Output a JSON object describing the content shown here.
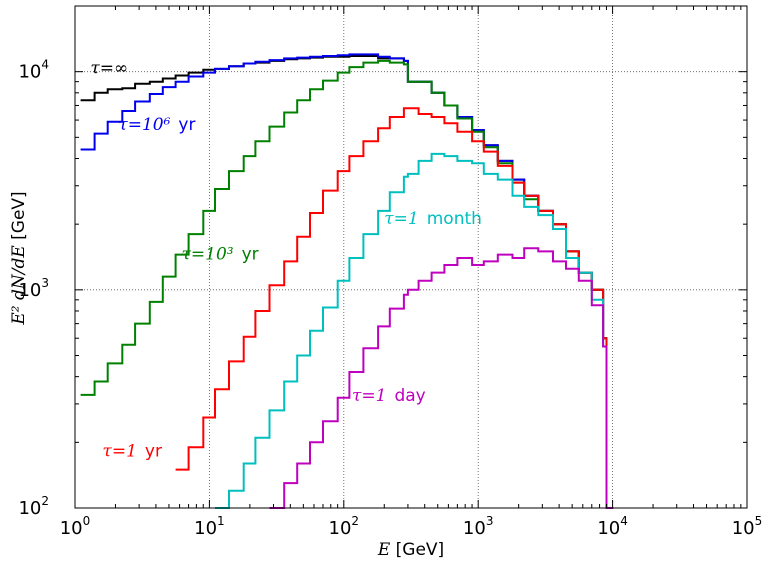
{
  "chart_data": {
    "type": "line",
    "title": "",
    "xlabel_var": "E",
    "xlabel_unit": "[GeV]",
    "ylabel_var": "E² dN/dE",
    "ylabel_unit": "[GeV]",
    "xscale": "log",
    "yscale": "log",
    "xlim": [
      1,
      100000
    ],
    "ylim": [
      100,
      20000
    ],
    "grid": true,
    "x_ticks": [
      {
        "value": 1,
        "base": "10",
        "exp": "0"
      },
      {
        "value": 10,
        "base": "10",
        "exp": "1"
      },
      {
        "value": 100,
        "base": "10",
        "exp": "2"
      },
      {
        "value": 1000,
        "base": "10",
        "exp": "3"
      },
      {
        "value": 10000,
        "base": "10",
        "exp": "4"
      },
      {
        "value": 100000,
        "base": "10",
        "exp": "5"
      }
    ],
    "y_ticks": [
      {
        "value": 100,
        "base": "10",
        "exp": "2"
      },
      {
        "value": 1000,
        "base": "10",
        "exp": "3"
      },
      {
        "value": 10000,
        "base": "10",
        "exp": "4"
      }
    ],
    "series": [
      {
        "name": "tau-infinity",
        "label_prefix": "τ=",
        "label_value": "∞",
        "label_unit": "",
        "color": "#000000",
        "label_anchor": [
          1.3,
          9800
        ],
        "points": [
          [
            1.1,
            7400
          ],
          [
            1.4,
            8000
          ],
          [
            1.75,
            8300
          ],
          [
            2.25,
            8400
          ],
          [
            2.8,
            8800
          ],
          [
            3.6,
            9000
          ],
          [
            4.5,
            9300
          ],
          [
            5.6,
            9600
          ],
          [
            7.0,
            9900
          ],
          [
            9.0,
            10200
          ],
          [
            11.0,
            10300
          ],
          [
            14.0,
            10600
          ],
          [
            18.0,
            10900
          ],
          [
            22.0,
            11000
          ],
          [
            28.0,
            11200
          ],
          [
            36.0,
            11400
          ],
          [
            45.0,
            11500
          ],
          [
            56.0,
            11600
          ],
          [
            70.0,
            11700
          ],
          [
            90.0,
            11700
          ],
          [
            110,
            11800
          ],
          [
            140,
            11800
          ],
          [
            180,
            11500
          ],
          [
            220,
            11500
          ],
          [
            280,
            11200
          ],
          [
            300,
            9000
          ],
          [
            360,
            9000
          ],
          [
            450,
            8000
          ],
          [
            560,
            7000
          ],
          [
            700,
            6200
          ],
          [
            900,
            5400
          ],
          [
            1100,
            4600
          ],
          [
            1400,
            3900
          ],
          [
            1800,
            3200
          ],
          [
            2200,
            2700
          ],
          [
            2800,
            2300
          ],
          [
            3600,
            2000
          ],
          [
            4500,
            1500
          ],
          [
            5600,
            1200
          ],
          [
            7000,
            1000
          ],
          [
            8500,
            600
          ],
          [
            9000,
            100
          ]
        ]
      },
      {
        "name": "tau-1e6-yr",
        "label_prefix": "τ=",
        "label_value": "10⁶",
        "label_unit": "yr",
        "color": "#0000ee",
        "label_anchor": [
          2.1,
          5400
        ],
        "points": [
          [
            1.1,
            4400
          ],
          [
            1.4,
            5200
          ],
          [
            1.75,
            5900
          ],
          [
            2.25,
            6600
          ],
          [
            2.8,
            7300
          ],
          [
            3.6,
            7900
          ],
          [
            4.5,
            8500
          ],
          [
            5.6,
            9000
          ],
          [
            7.0,
            9500
          ],
          [
            9.0,
            9900
          ],
          [
            11.0,
            10300
          ],
          [
            14.0,
            10600
          ],
          [
            18.0,
            10900
          ],
          [
            22.0,
            11100
          ],
          [
            28.0,
            11300
          ],
          [
            36.0,
            11500
          ],
          [
            45.0,
            11600
          ],
          [
            56.0,
            11700
          ],
          [
            70.0,
            11800
          ],
          [
            90.0,
            11900
          ],
          [
            110,
            12000
          ],
          [
            140,
            12000
          ],
          [
            180,
            11700
          ],
          [
            220,
            11500
          ],
          [
            280,
            11200
          ],
          [
            300,
            9000
          ],
          [
            360,
            9000
          ],
          [
            450,
            8000
          ],
          [
            560,
            7000
          ],
          [
            700,
            6200
          ],
          [
            900,
            5400
          ],
          [
            1100,
            4600
          ],
          [
            1400,
            3900
          ],
          [
            1800,
            3200
          ],
          [
            2200,
            2700
          ],
          [
            2800,
            2300
          ],
          [
            3600,
            2000
          ],
          [
            4500,
            1500
          ],
          [
            5600,
            1200
          ],
          [
            7000,
            1000
          ],
          [
            8500,
            600
          ],
          [
            9000,
            100
          ]
        ]
      },
      {
        "name": "tau-1e3-yr",
        "label_prefix": "τ=",
        "label_value": "10³",
        "label_unit": "yr",
        "color": "#008000",
        "label_anchor": [
          6.2,
          1380
        ],
        "points": [
          [
            1.1,
            330
          ],
          [
            1.4,
            380
          ],
          [
            1.75,
            460
          ],
          [
            2.25,
            560
          ],
          [
            2.8,
            700
          ],
          [
            3.6,
            880
          ],
          [
            4.5,
            1150
          ],
          [
            5.6,
            1450
          ],
          [
            7.0,
            1800
          ],
          [
            9.0,
            2300
          ],
          [
            11.0,
            2900
          ],
          [
            14.0,
            3500
          ],
          [
            18.0,
            4100
          ],
          [
            22.0,
            4800
          ],
          [
            28.0,
            5600
          ],
          [
            36.0,
            6500
          ],
          [
            45.0,
            7400
          ],
          [
            56.0,
            8300
          ],
          [
            70.0,
            9100
          ],
          [
            90.0,
            9900
          ],
          [
            110,
            10500
          ],
          [
            140,
            11000
          ],
          [
            180,
            11200
          ],
          [
            220,
            11000
          ],
          [
            280,
            10800
          ],
          [
            300,
            9000
          ],
          [
            360,
            9000
          ],
          [
            450,
            8000
          ],
          [
            560,
            7000
          ],
          [
            700,
            6100
          ],
          [
            900,
            5300
          ],
          [
            1100,
            4500
          ],
          [
            1400,
            3800
          ],
          [
            1800,
            3100
          ],
          [
            2200,
            2600
          ],
          [
            2800,
            2300
          ],
          [
            3600,
            2000
          ],
          [
            4500,
            1500
          ],
          [
            5600,
            1200
          ],
          [
            7000,
            1000
          ],
          [
            8500,
            600
          ],
          [
            9000,
            100
          ]
        ]
      },
      {
        "name": "tau-1-yr",
        "label_prefix": "τ=",
        "label_value": "1",
        "label_unit": "yr",
        "color": "#ff0000",
        "label_anchor": [
          1.6,
          172
        ],
        "points": [
          [
            5.6,
            150
          ],
          [
            7.0,
            190
          ],
          [
            9.0,
            260
          ],
          [
            11.0,
            350
          ],
          [
            14.0,
            470
          ],
          [
            18.0,
            610
          ],
          [
            22.0,
            800
          ],
          [
            28.0,
            1050
          ],
          [
            36.0,
            1350
          ],
          [
            45.0,
            1750
          ],
          [
            56.0,
            2250
          ],
          [
            70.0,
            2850
          ],
          [
            90.0,
            3500
          ],
          [
            110,
            4100
          ],
          [
            140,
            4800
          ],
          [
            180,
            5500
          ],
          [
            220,
            6200
          ],
          [
            280,
            6800
          ],
          [
            300,
            6800
          ],
          [
            360,
            6400
          ],
          [
            450,
            6200
          ],
          [
            560,
            5800
          ],
          [
            700,
            5300
          ],
          [
            900,
            4800
          ],
          [
            1100,
            4300
          ],
          [
            1400,
            3700
          ],
          [
            1800,
            3100
          ],
          [
            2200,
            2700
          ],
          [
            2800,
            2300
          ],
          [
            3600,
            2000
          ],
          [
            4500,
            1500
          ],
          [
            5600,
            1200
          ],
          [
            7000,
            1000
          ],
          [
            8500,
            600
          ],
          [
            9000,
            100
          ]
        ]
      },
      {
        "name": "tau-1-month",
        "label_prefix": "τ=",
        "label_value": "1",
        "label_unit": "month",
        "color": "#00bfbf",
        "label_anchor": [
          200,
          2000
        ],
        "points": [
          [
            11.0,
            100
          ],
          [
            14.0,
            120
          ],
          [
            18.0,
            160
          ],
          [
            22.0,
            210
          ],
          [
            28.0,
            280
          ],
          [
            36.0,
            380
          ],
          [
            45.0,
            500
          ],
          [
            56.0,
            650
          ],
          [
            70.0,
            830
          ],
          [
            90.0,
            1100
          ],
          [
            110,
            1400
          ],
          [
            140,
            1800
          ],
          [
            180,
            2300
          ],
          [
            220,
            2800
          ],
          [
            280,
            3300
          ],
          [
            300,
            3400
          ],
          [
            360,
            3900
          ],
          [
            450,
            4200
          ],
          [
            560,
            4100
          ],
          [
            700,
            3900
          ],
          [
            900,
            3800
          ],
          [
            1100,
            3400
          ],
          [
            1400,
            3200
          ],
          [
            1800,
            2700
          ],
          [
            2200,
            2400
          ],
          [
            2800,
            2200
          ],
          [
            3600,
            1900
          ],
          [
            4500,
            1400
          ],
          [
            5600,
            1200
          ],
          [
            7000,
            900
          ],
          [
            8500,
            550
          ],
          [
            9000,
            100
          ]
        ]
      },
      {
        "name": "tau-1-day",
        "label_prefix": "τ=",
        "label_value": "1",
        "label_unit": "day",
        "color": "#bf00bf",
        "label_anchor": [
          115,
          310
        ],
        "points": [
          [
            28.0,
            100
          ],
          [
            36.0,
            130
          ],
          [
            45.0,
            160
          ],
          [
            56.0,
            200
          ],
          [
            70.0,
            250
          ],
          [
            90.0,
            320
          ],
          [
            110,
            420
          ],
          [
            140,
            540
          ],
          [
            180,
            680
          ],
          [
            220,
            820
          ],
          [
            280,
            950
          ],
          [
            300,
            1000
          ],
          [
            360,
            1100
          ],
          [
            450,
            1200
          ],
          [
            560,
            1300
          ],
          [
            700,
            1400
          ],
          [
            900,
            1300
          ],
          [
            1100,
            1350
          ],
          [
            1400,
            1450
          ],
          [
            1800,
            1400
          ],
          [
            2200,
            1550
          ],
          [
            2800,
            1500
          ],
          [
            3600,
            1350
          ],
          [
            4500,
            1250
          ],
          [
            5600,
            1100
          ],
          [
            7000,
            850
          ],
          [
            8500,
            550
          ],
          [
            9000,
            100
          ]
        ]
      }
    ]
  }
}
